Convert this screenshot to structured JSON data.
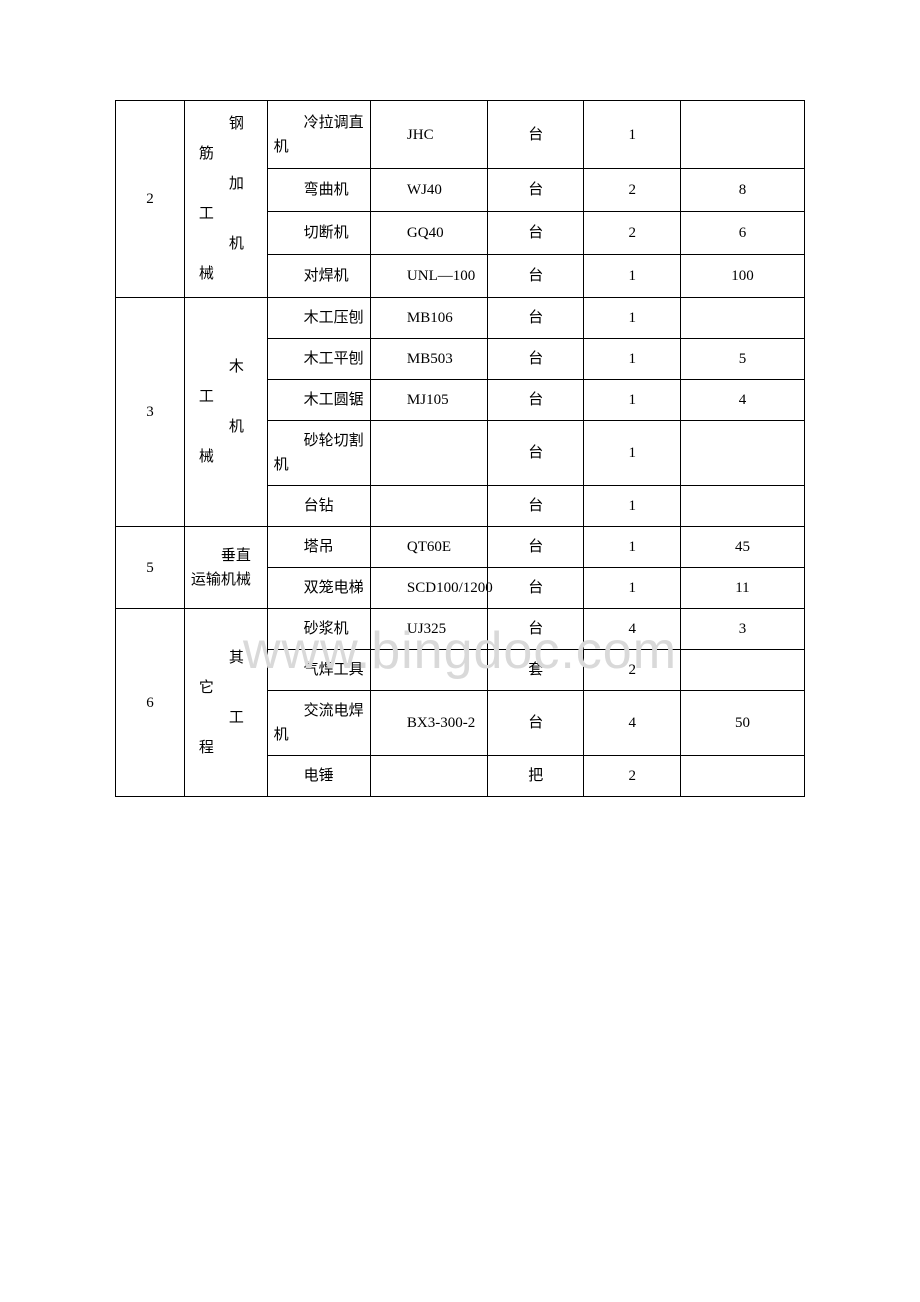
{
  "watermark": "www.bingdoc.com",
  "table": {
    "border_color": "#000000",
    "background_color": "#ffffff",
    "text_color": "#000000",
    "font_size": 15,
    "columns": [
      {
        "key": "index",
        "width_pct": 10,
        "align": "center"
      },
      {
        "key": "category",
        "width_pct": 12,
        "align": "left"
      },
      {
        "key": "name",
        "width_pct": 15,
        "align": "left"
      },
      {
        "key": "model",
        "width_pct": 17,
        "align": "left"
      },
      {
        "key": "unit",
        "width_pct": 14,
        "align": "center"
      },
      {
        "key": "qty",
        "width_pct": 14,
        "align": "center"
      },
      {
        "key": "spec",
        "width_pct": 18,
        "align": "center"
      }
    ],
    "groups": [
      {
        "index": "2",
        "category": "钢筋加工机械",
        "rows": [
          {
            "name": "冷拉调直机",
            "model": "JHC",
            "unit": "台",
            "qty": "1",
            "spec": ""
          },
          {
            "name": "弯曲机",
            "model": "WJ40",
            "unit": "台",
            "qty": "2",
            "spec": "8"
          },
          {
            "name": "切断机",
            "model": "GQ40",
            "unit": "台",
            "qty": "2",
            "spec": "6"
          },
          {
            "name": "对焊机",
            "model": "UNL—100",
            "unit": "台",
            "qty": "1",
            "spec": "100"
          }
        ]
      },
      {
        "index": "3",
        "category": "木工机械",
        "rows": [
          {
            "name": "木工压刨",
            "model": "MB106",
            "unit": "台",
            "qty": "1",
            "spec": ""
          },
          {
            "name": "木工平刨",
            "model": "MB503",
            "unit": "台",
            "qty": "1",
            "spec": "5"
          },
          {
            "name": "木工圆锯",
            "model": "MJ105",
            "unit": "台",
            "qty": "1",
            "spec": "4"
          },
          {
            "name": "砂轮切割机",
            "model": "",
            "unit": "台",
            "qty": "1",
            "spec": ""
          },
          {
            "name": "台钻",
            "model": "",
            "unit": "台",
            "qty": "1",
            "spec": ""
          }
        ]
      },
      {
        "index": "5",
        "category": "垂直运输机械",
        "rows": [
          {
            "name": "塔吊",
            "model": "QT60E",
            "unit": "台",
            "qty": "1",
            "spec": "45"
          },
          {
            "name": "双笼电梯",
            "model": "SCD100/1200",
            "unit": "台",
            "qty": "1",
            "spec": "11"
          }
        ]
      },
      {
        "index": "6",
        "category": "其它工程",
        "rows": [
          {
            "name": "砂浆机",
            "model": "UJ325",
            "unit": "台",
            "qty": "4",
            "spec": "3"
          },
          {
            "name": "气焊工具",
            "model": "",
            "unit": "套",
            "qty": "2",
            "spec": ""
          },
          {
            "name": "交流电焊机",
            "model": "BX3-300-2",
            "unit": "台",
            "qty": "4",
            "spec": "50"
          },
          {
            "name": "电锤",
            "model": "",
            "unit": "把",
            "qty": "2",
            "spec": ""
          }
        ]
      }
    ]
  }
}
